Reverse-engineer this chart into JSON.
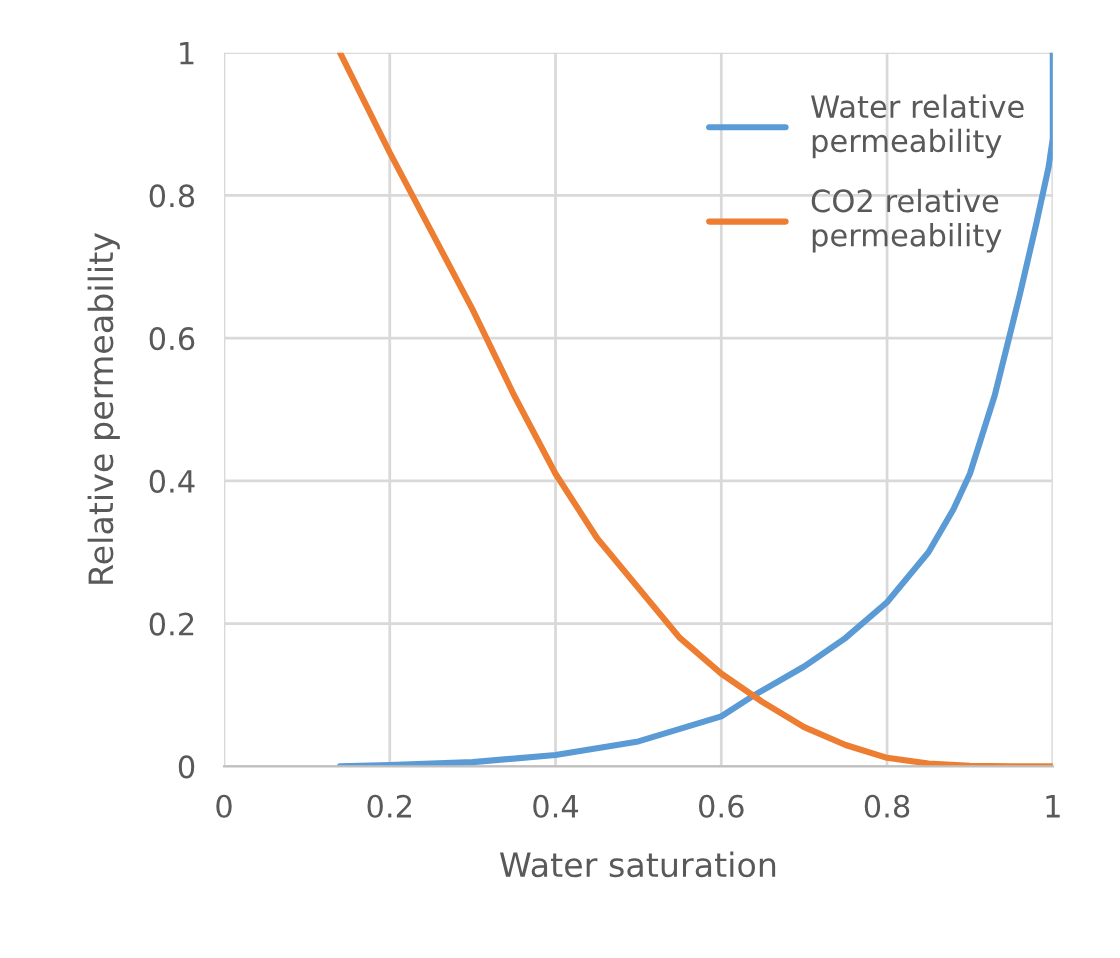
{
  "chart_data": {
    "type": "line",
    "xlabel": "Water saturation",
    "ylabel": "Relative permeability",
    "xlim": [
      0,
      1
    ],
    "ylim": [
      0,
      1
    ],
    "xticks": [
      0,
      0.2,
      0.4,
      0.6,
      0.8,
      1
    ],
    "yticks": [
      0,
      0.2,
      0.4,
      0.6,
      0.8,
      1
    ],
    "grid": true,
    "legend": "top right",
    "marker": "none",
    "line_style": "solid",
    "series": [
      {
        "name": "Water relative permeability",
        "color": "#5b9bd5",
        "x": [
          0.14,
          0.2,
          0.3,
          0.4,
          0.5,
          0.6,
          0.64,
          0.7,
          0.75,
          0.8,
          0.85,
          0.88,
          0.9,
          0.93,
          0.96,
          0.98,
          0.995,
          1.0,
          1.0
        ],
        "values": [
          0,
          0.002,
          0.006,
          0.016,
          0.035,
          0.07,
          0.1,
          0.14,
          0.18,
          0.23,
          0.3,
          0.36,
          0.41,
          0.52,
          0.66,
          0.76,
          0.84,
          0.88,
          1.0
        ]
      },
      {
        "name": "CO2 relative permeability",
        "color": "#ed7d31",
        "x": [
          0.14,
          0.2,
          0.25,
          0.3,
          0.35,
          0.4,
          0.45,
          0.5,
          0.55,
          0.6,
          0.65,
          0.7,
          0.75,
          0.8,
          0.85,
          0.9,
          0.95,
          1.0
        ],
        "values": [
          1,
          0.86,
          0.75,
          0.64,
          0.52,
          0.41,
          0.32,
          0.25,
          0.18,
          0.13,
          0.09,
          0.055,
          0.03,
          0.012,
          0.004,
          0.001,
          0,
          0
        ]
      }
    ]
  }
}
